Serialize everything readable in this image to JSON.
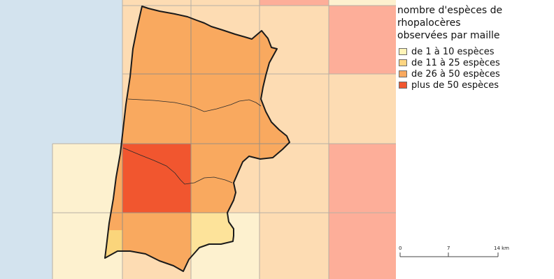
{
  "legend": {
    "title_lines": [
      "nombre d'espèces de",
      "rhopalocères",
      "observées par maille"
    ],
    "items": [
      {
        "label": "de 1 à 10 espèces",
        "color": "#fff4b8"
      },
      {
        "label": "de 11 à 25 espèces",
        "color": "#fdd582"
      },
      {
        "label": "de 26 à 50 espèces",
        "color": "#f9a95f"
      },
      {
        "label": "plus de 50 espèces",
        "color": "#f1562f"
      }
    ]
  },
  "scale_bar": {
    "ticks": [
      "0",
      "7",
      "14 km"
    ]
  },
  "colors": {
    "sea": "#d3e3ee",
    "land_light": "#fdf1cf",
    "land_mid": "#fddcb3",
    "land_strong": "#fdae99",
    "outline": "#1a1a1a"
  }
}
